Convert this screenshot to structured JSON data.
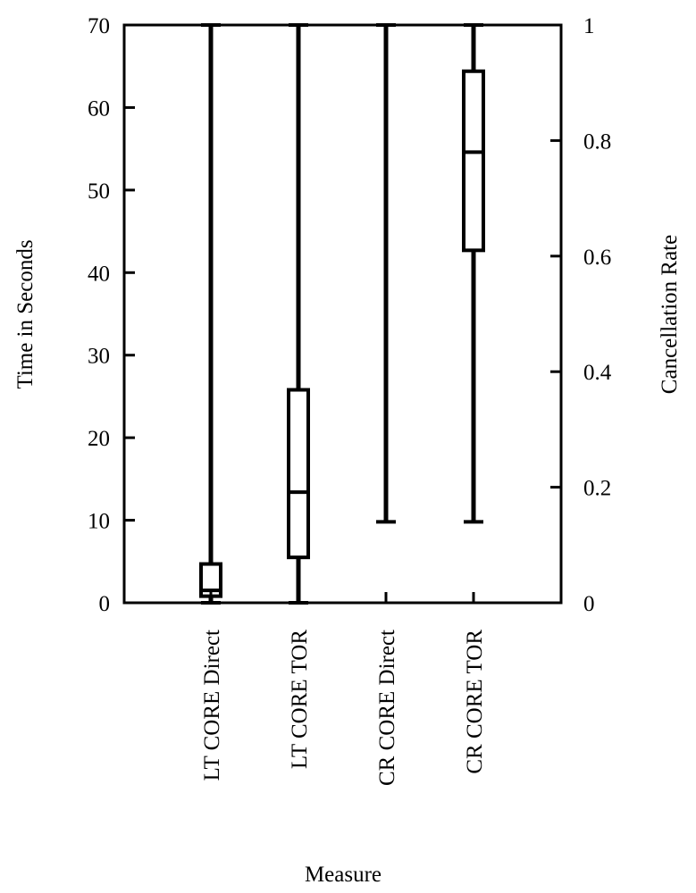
{
  "chart_data": {
    "type": "boxplot",
    "title": "",
    "xlabel": "Measure",
    "ylabel": "Time in Seconds",
    "y2label": "Cancellation Rate",
    "ylim": [
      0,
      70
    ],
    "y2lim": [
      0,
      1
    ],
    "yticks": [
      0,
      10,
      20,
      30,
      40,
      50,
      60,
      70
    ],
    "yticklabels": [
      "0",
      "10",
      "20",
      "30",
      "40",
      "50",
      "60",
      "70"
    ],
    "y2ticks": [
      0,
      0.2,
      0.4,
      0.6,
      0.8,
      1
    ],
    "y2ticklabels": [
      "0",
      "0.2",
      "0.4",
      "0.6",
      "0.8",
      "1"
    ],
    "grid": false,
    "legend": "none",
    "categories": [
      "LT CORE Direct",
      "LT CORE TOR",
      "CR CORE Direct",
      "CR CORE TOR"
    ],
    "boxes": [
      {
        "category": "LT CORE Direct",
        "axis": "left",
        "min": 0,
        "q1": 0.8,
        "median": 1.5,
        "q3": 4.7,
        "max": 70
      },
      {
        "category": "LT CORE TOR",
        "axis": "left",
        "min": 0,
        "q1": 5.5,
        "median": 13.4,
        "q3": 25.8,
        "max": 70
      },
      {
        "category": "CR CORE Direct",
        "axis": "right",
        "min": 0.14,
        "q1": null,
        "median": null,
        "q3": null,
        "max": 1
      },
      {
        "category": "CR CORE TOR",
        "axis": "right",
        "min": 0.14,
        "q1": 0.61,
        "median": 0.78,
        "q3": 0.92,
        "max": 1
      }
    ]
  }
}
